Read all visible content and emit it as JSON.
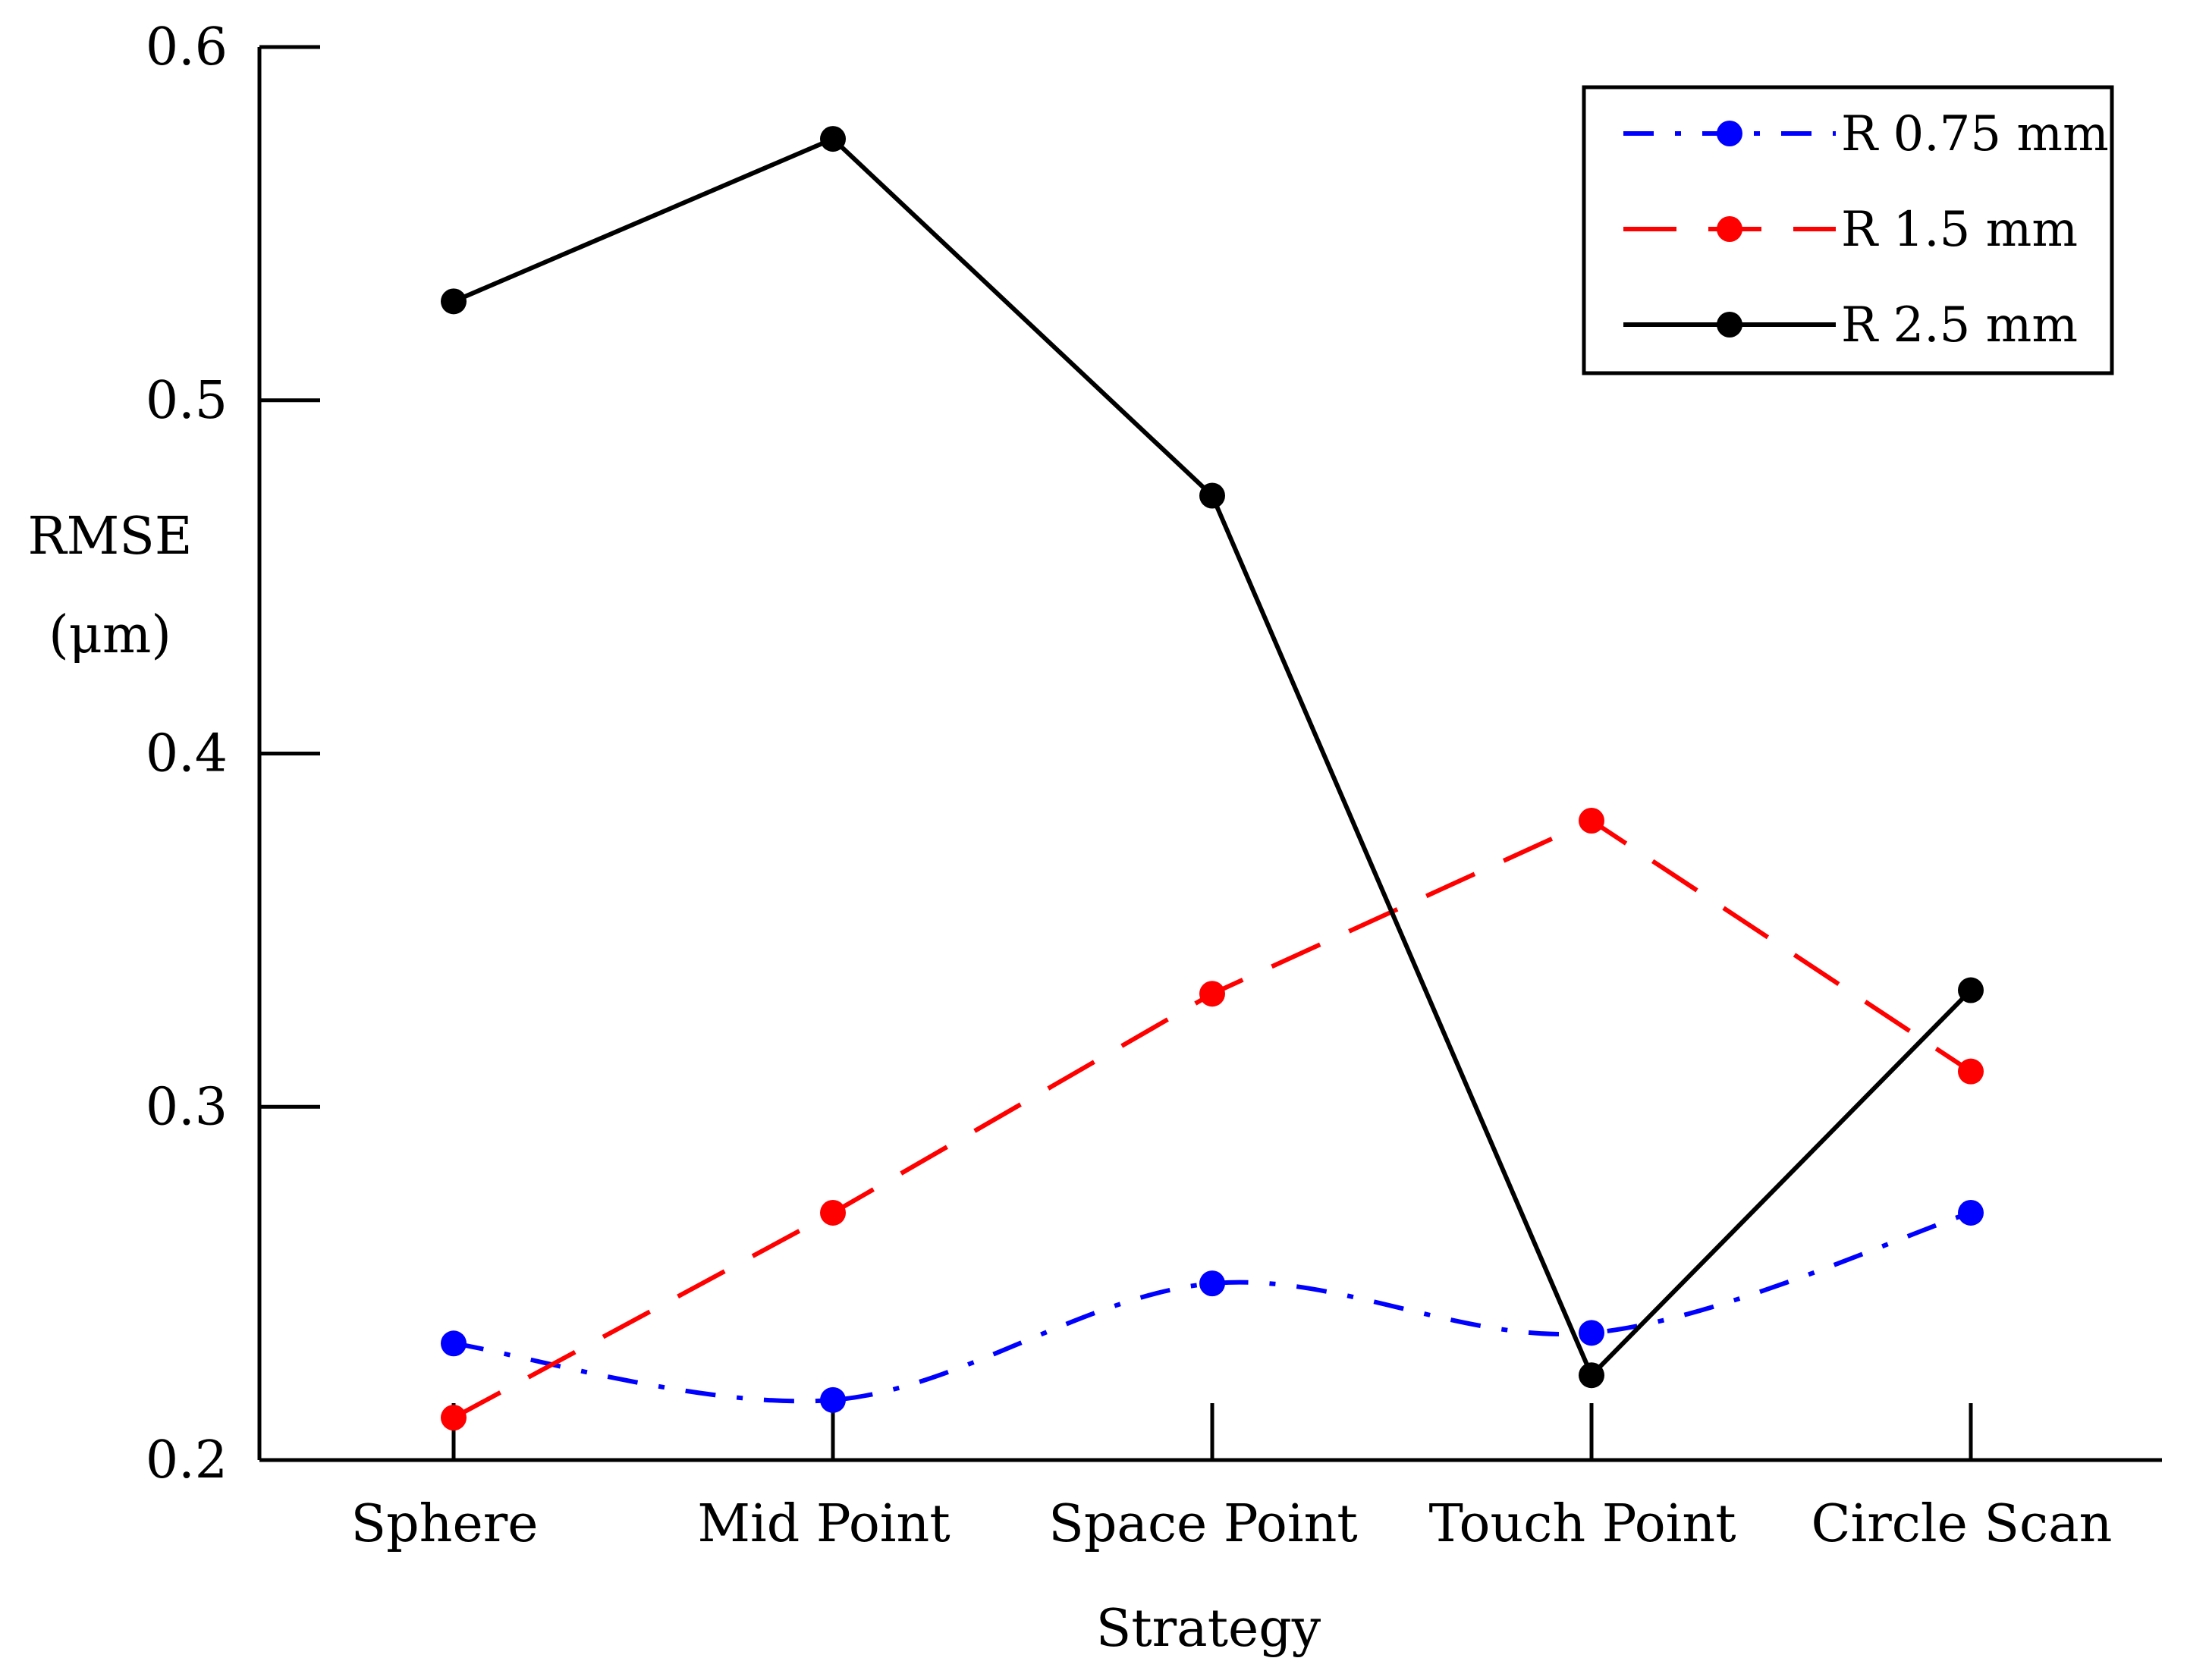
{
  "chart_data": {
    "type": "line",
    "title": "",
    "xlabel": "Strategy",
    "ylabel_lines": [
      "RMSE",
      "(μm)"
    ],
    "categories": [
      "Sphere",
      "Mid Point",
      "Space Point",
      "Touch Point",
      "Circle Scan"
    ],
    "ylim": [
      0.2,
      0.6
    ],
    "yticks": [
      "0.2",
      "0.3",
      "0.4",
      "0.5",
      "0.6"
    ],
    "grid": false,
    "legend_position": "top-right",
    "series": [
      {
        "name": "R 0.75 mm",
        "color": "#0000ff",
        "dash": "dashdot",
        "smooth": true,
        "values": [
          0.233,
          0.217,
          0.25,
          0.236,
          0.27
        ]
      },
      {
        "name": "R 1.5 mm",
        "color": "#ff0000",
        "dash": "dashed",
        "smooth": false,
        "values": [
          0.212,
          0.27,
          0.332,
          0.381,
          0.31
        ]
      },
      {
        "name": "R 2.5 mm",
        "color": "#000000",
        "dash": "solid",
        "smooth": false,
        "values": [
          0.528,
          0.574,
          0.473,
          0.224,
          0.333
        ]
      }
    ]
  }
}
